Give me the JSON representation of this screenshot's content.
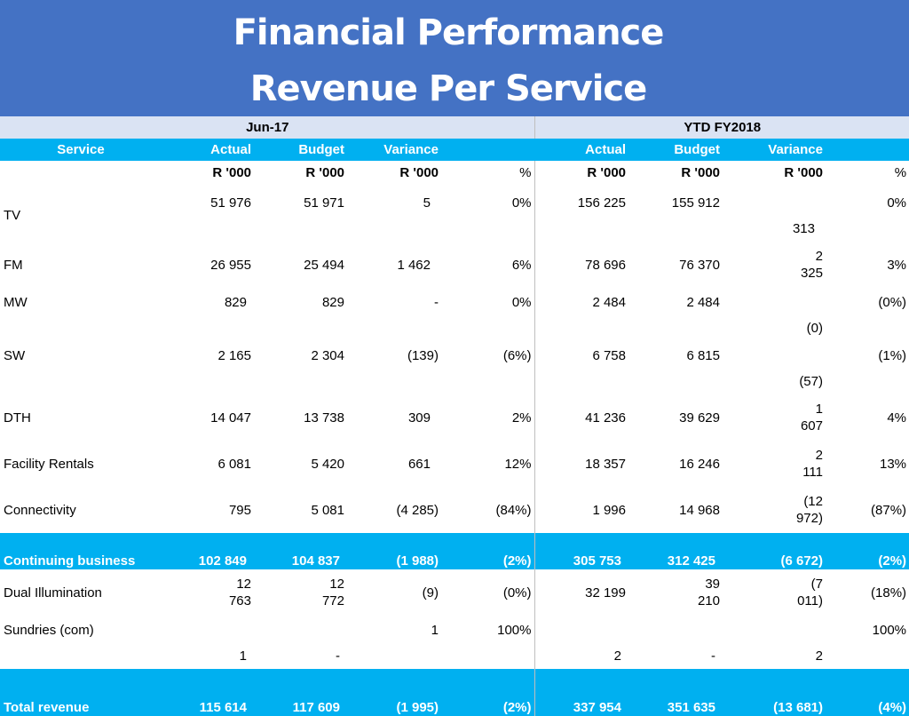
{
  "title": {
    "line1": "Financial Performance",
    "line2": "Revenue Per Service"
  },
  "periods": {
    "month": "Jun-17",
    "ytd": "YTD FY2018"
  },
  "columns": {
    "service": "Service",
    "actual": "Actual",
    "budget": "Budget",
    "variance": "Variance"
  },
  "units": {
    "r000": "R '000",
    "pct": "%"
  },
  "rows": [
    {
      "service": "TV",
      "jun": [
        "51 976",
        "51 971",
        "5",
        "0%"
      ],
      "ytd": [
        "156 225",
        "155 912",
        "313",
        "0%"
      ]
    },
    {
      "service": "FM",
      "jun": [
        "26 955",
        "25 494",
        "1 462",
        "6%"
      ],
      "ytd": [
        "78 696",
        "76 370",
        "2 325",
        "3%"
      ]
    },
    {
      "service": "MW",
      "jun": [
        "829",
        "829",
        "-",
        "0%"
      ],
      "ytd": [
        "2 484",
        "2 484",
        "(0)",
        "(0%)"
      ]
    },
    {
      "service": "SW",
      "jun": [
        "2 165",
        "2 304",
        "(139)",
        "(6%)"
      ],
      "ytd": [
        "6 758",
        "6 815",
        "(57)",
        "(1%)"
      ]
    },
    {
      "service": "DTH",
      "jun": [
        "14 047",
        "13 738",
        "309",
        "2%"
      ],
      "ytd": [
        "41 236",
        "39 629",
        "1 607",
        "4%"
      ]
    },
    {
      "service": "Facility Rentals",
      "jun": [
        "6 081",
        "5 420",
        "661",
        "12%"
      ],
      "ytd": [
        "18 357",
        "16 246",
        "2 111",
        "13%"
      ]
    },
    {
      "service": "Connectivity",
      "jun": [
        "795",
        "5 081",
        "(4 285)",
        "(84%)"
      ],
      "ytd": [
        "1 996",
        "14 968",
        "(12 972)",
        "(87%)"
      ]
    }
  ],
  "continuing": {
    "label": "Continuing business",
    "jun": [
      "102 849",
      "104 837",
      "(1 988)",
      "(2%)"
    ],
    "ytd": [
      "305 753",
      "312 425",
      "(6 672)",
      "(2%)"
    ]
  },
  "dual": {
    "label": "Dual Illumination",
    "jun": [
      "12 763",
      "12 772",
      "(9)",
      "(0%)"
    ],
    "ytd": [
      "32 199",
      "39 210",
      "(7 011)",
      "(18%)"
    ]
  },
  "sundries": {
    "label": "Sundries (com)",
    "jun": [
      "1",
      "-",
      "1",
      "100%"
    ],
    "ytd": [
      "2",
      "-",
      "2",
      "100%"
    ]
  },
  "total": {
    "label": "Total revenue",
    "jun": [
      "115 614",
      "117 609",
      "(1 995)",
      "(2%)"
    ],
    "ytd": [
      "337 954",
      "351 635",
      "(13 681)",
      "(4%)"
    ]
  }
}
